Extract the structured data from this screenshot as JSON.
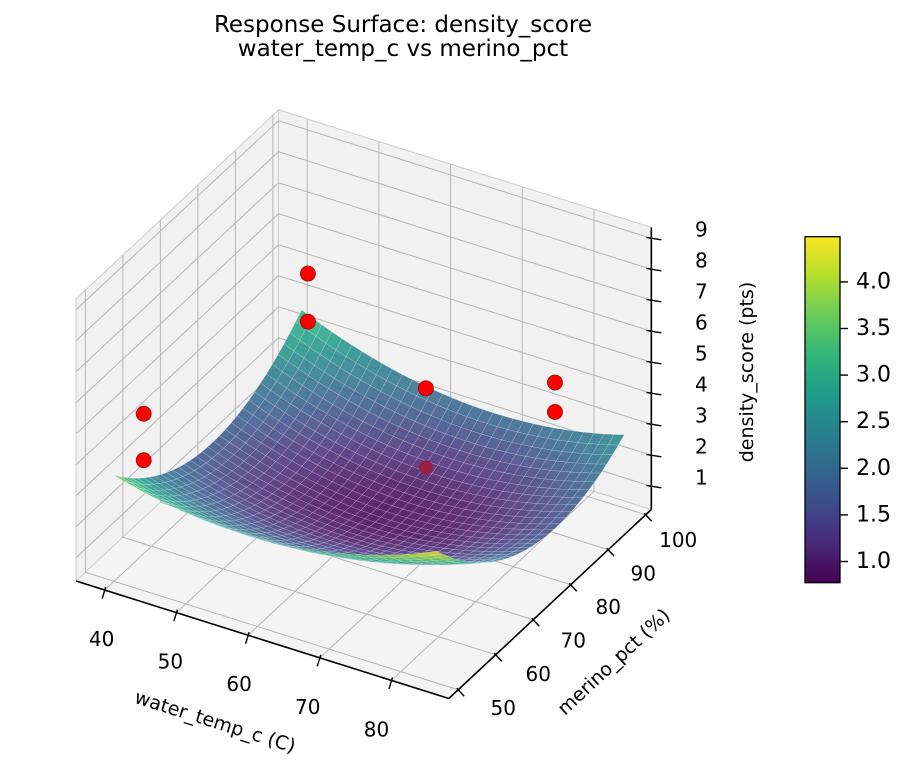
{
  "figure": {
    "title_line1": "Response Surface: density_score",
    "title_line2": "water_temp_c vs merino_pct",
    "background_color": "#ffffff"
  },
  "chart_data": {
    "type": "3d-surface-with-scatter",
    "title": "Response Surface: density_score\nwater_temp_c vs merino_pct",
    "xlabel": "water_temp_c (C)",
    "ylabel": "merino_pct (%)",
    "zlabel": "density_score (pts)",
    "x_ticks": [
      40,
      50,
      60,
      70,
      80
    ],
    "y_ticks": [
      50,
      60,
      70,
      80,
      90,
      100
    ],
    "z_ticks": [
      1,
      2,
      3,
      4,
      5,
      6,
      7,
      8,
      9
    ],
    "xlim": [
      36,
      88
    ],
    "ylim": [
      47.5,
      101.5
    ],
    "zlim": [
      0.25,
      9.35
    ],
    "grid": true,
    "surface": {
      "colormap": "viridis",
      "vmin": 0.77,
      "vmax": 4.49,
      "x_domain": [
        40,
        85
      ],
      "y_domain": [
        50,
        100
      ],
      "model": "z = z0 + ax*(x-xc)^2 + by*(y-yc)^2 + cxy*(x-xc)*(y-yc)",
      "coeffs": {
        "z0": 0.78,
        "xc": 63,
        "yc": 79,
        "ax": 0.0019,
        "by": 0.0028,
        "cxy": -0.0007
      },
      "min_value": 0.78,
      "max_value": 4.5,
      "corner_values": {
        "x40_y50": 3.67,
        "x85_y50": 4.5,
        "x40_y100": 3.36,
        "x85_y100": 2.61
      }
    },
    "scatter": {
      "color": "#ff0000",
      "marker_radius_px": 7.5,
      "points": [
        {
          "water_temp_c": 43.5,
          "merino_pct": 95,
          "density_score": 5.35
        },
        {
          "water_temp_c": 43.5,
          "merino_pct": 95,
          "density_score": 3.8
        },
        {
          "water_temp_c": 41,
          "merino_pct": 56,
          "density_score": 5.05
        },
        {
          "water_temp_c": 41,
          "merino_pct": 56,
          "density_score": 3.55
        },
        {
          "water_temp_c": 61,
          "merino_pct": 93,
          "density_score": 3.15
        },
        {
          "water_temp_c": 61,
          "merino_pct": 93,
          "density_score": 0.6
        },
        {
          "water_temp_c": 79,
          "merino_pct": 93,
          "density_score": 4.65
        },
        {
          "water_temp_c": 79,
          "merino_pct": 93,
          "density_score": 3.7
        }
      ]
    },
    "colorbar": {
      "colormap": "viridis",
      "vmin": 0.77,
      "vmax": 4.49,
      "ticks": [
        1.0,
        1.5,
        2.0,
        2.5,
        3.0,
        3.5,
        4.0
      ],
      "tick_labels": [
        "1.0",
        "1.5",
        "2.0",
        "2.5",
        "3.0",
        "3.5",
        "4.0"
      ],
      "position": "right"
    }
  }
}
